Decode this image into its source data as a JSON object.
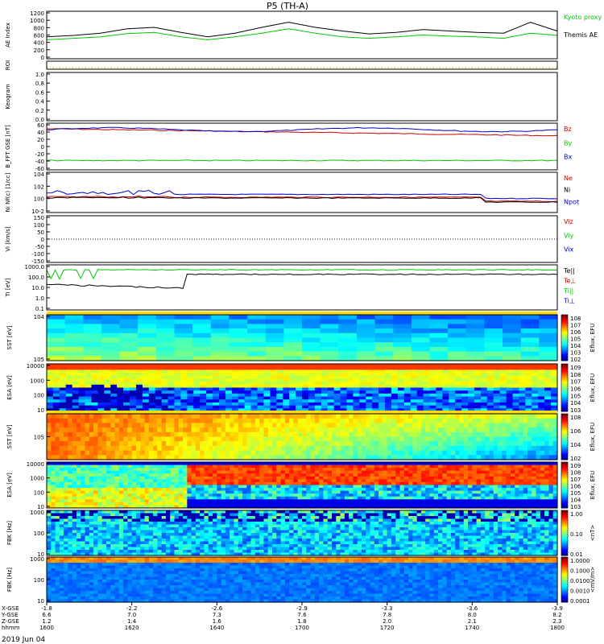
{
  "title": "P5 (TH-A)",
  "date_label": "2019 Jun 04",
  "colors": {
    "black": "#000000",
    "green": "#00c800",
    "red": "#d00000",
    "blue": "#0000cc"
  },
  "chart_data": [
    {
      "type": "line",
      "ylabel": "AE Index",
      "yticks": [
        "1200",
        "1000",
        "800",
        "600",
        "400",
        "200",
        "0"
      ],
      "series": [
        {
          "name": "Kyoto proxy AE",
          "values": [
            520,
            560,
            600,
            690,
            720,
            600,
            520,
            600,
            700,
            820,
            700,
            600,
            560,
            600,
            650,
            620,
            600,
            560,
            700,
            640
          ]
        },
        {
          "name": "Themis AE",
          "values": [
            600,
            640,
            700,
            820,
            860,
            720,
            600,
            700,
            860,
            1000,
            860,
            760,
            680,
            720,
            800,
            760,
            720,
            700,
            1000,
            760
          ]
        }
      ],
      "legend": [
        "Kyoto proxy AE",
        "Themis AE"
      ]
    },
    {
      "type": "line",
      "ylabel": "ROI",
      "yticks": []
    },
    {
      "type": "line",
      "ylabel": "Keogram",
      "yticks": [
        "1.0",
        "0.8",
        "0.6",
        "0.4",
        "0.2",
        "0.0"
      ]
    },
    {
      "type": "line",
      "ylabel": "B_FFT GSE [nT]",
      "yticks": [
        "60",
        "40",
        "20",
        "0",
        "-20",
        "-40",
        "-60"
      ],
      "legend": [
        "Bz",
        "By",
        "Bx"
      ]
    },
    {
      "type": "line",
      "ylabel": "Ni Nf(c) [1/cc]",
      "yticks": [
        "10^4",
        "10^2",
        "10^0",
        "10^-2"
      ],
      "legend": [
        "Ne",
        "Ni",
        "Npot"
      ]
    },
    {
      "type": "line",
      "ylabel": "Vi [km/s]",
      "yticks": [
        "150",
        "100",
        "50",
        "0",
        "-50",
        "-100",
        "-150"
      ],
      "legend": [
        "Viz",
        "Viy",
        "Vix"
      ]
    },
    {
      "type": "line",
      "ylabel": "Ti [eV]",
      "yticks": [
        "1000.0",
        "100.0",
        "10.0",
        "1.0",
        "0.1"
      ],
      "legend": [
        "Te||",
        "Te⊥",
        "Ti||",
        "Ti⊥"
      ]
    },
    {
      "type": "heatmap",
      "ylabel": "SST [eV]",
      "yticks": [
        "10^4",
        "10^5"
      ],
      "colorbar": "Eflux, EFU",
      "cticks": [
        "10^8",
        "10^7",
        "10^6",
        "10^5",
        "10^4",
        "10^3",
        "10^2"
      ]
    },
    {
      "type": "heatmap",
      "ylabel": "ESA [eV]",
      "yticks": [
        "10000",
        "1000",
        "100",
        "10"
      ],
      "colorbar": "Eflux, EFU",
      "cticks": [
        "10^9",
        "10^8",
        "10^7",
        "10^6",
        "10^5",
        "10^4",
        "10^3"
      ]
    },
    {
      "type": "heatmap",
      "ylabel": "SST [eV]",
      "yticks": [
        "10^5"
      ],
      "colorbar": "Eflux, EFU",
      "cticks": [
        "10^8",
        "10^6",
        "10^4",
        "10^2"
      ]
    },
    {
      "type": "heatmap",
      "ylabel": "ESA [eV]",
      "yticks": [
        "10000",
        "1000",
        "100",
        "10"
      ],
      "colorbar": "Eflux, EFU",
      "cticks": [
        "10^9",
        "10^8",
        "10^7",
        "10^6",
        "10^5",
        "10^4",
        "10^3"
      ]
    },
    {
      "type": "heatmap",
      "ylabel": "FBK [Hz]",
      "yticks": [
        "1000",
        "100",
        "10"
      ],
      "colorbar": "<nT>",
      "cticks": [
        "1.00",
        "0.10",
        "0.01"
      ]
    },
    {
      "type": "heatmap",
      "ylabel": "FBK [Hz]",
      "yticks": [
        "1000",
        "100",
        "10"
      ],
      "colorbar": "<mV/m>",
      "cticks": [
        "1.0000",
        "0.1000",
        "0.0100",
        "0.0010",
        "0.0001"
      ]
    }
  ],
  "x_axis": {
    "row_labels": [
      "X-GSE",
      "Y-GSE",
      "Z-GSE",
      "hhmm"
    ],
    "columns": [
      {
        "vals": [
          "-1.8",
          "6.6",
          "1.2",
          "1600"
        ]
      },
      {
        "vals": [
          "-2.2",
          "7.0",
          "1.4",
          "1620"
        ]
      },
      {
        "vals": [
          "-2.6",
          "7.3",
          "1.6",
          "1640"
        ]
      },
      {
        "vals": [
          "-2.9",
          "7.6",
          "1.8",
          "1700"
        ]
      },
      {
        "vals": [
          "-3.3",
          "7.8",
          "2.0",
          "1720"
        ]
      },
      {
        "vals": [
          "-3.6",
          "8.0",
          "2.1",
          "1740"
        ]
      },
      {
        "vals": [
          "-3.9",
          "8.2",
          "2.3",
          "1800"
        ]
      }
    ]
  }
}
